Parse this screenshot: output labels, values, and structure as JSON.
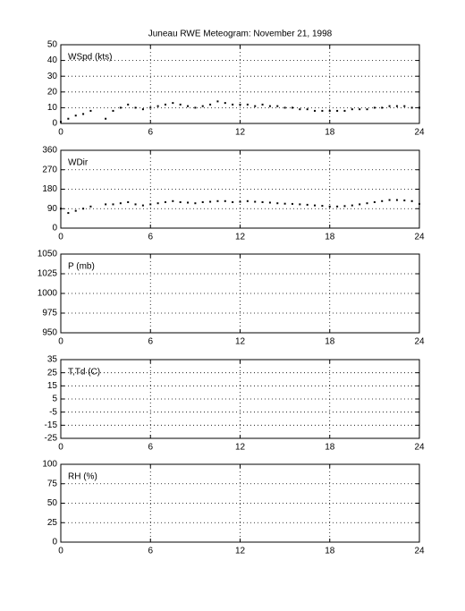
{
  "chart_data": [
    {
      "type": "scatter",
      "title": "Juneau RWE Meteogram:  November 21, 1998",
      "label": "WSpd (kts)",
      "color": "#000000",
      "grid": true,
      "xlim": [
        0,
        24
      ],
      "xticks": [
        0,
        6,
        12,
        18,
        24
      ],
      "ylim": [
        0,
        50
      ],
      "yticks": [
        0,
        10,
        20,
        30,
        40,
        50
      ],
      "x": [
        0,
        0.5,
        1,
        1.5,
        2,
        3,
        3.5,
        4,
        4.5,
        5,
        5.5,
        6,
        6.5,
        7,
        7.5,
        8,
        8.5,
        9,
        9.5,
        10,
        10.5,
        11,
        11.5,
        12,
        12.5,
        13,
        13.5,
        14,
        14.5,
        15,
        15.5,
        16,
        16.5,
        17,
        17.5,
        18,
        18.5,
        19,
        19.5,
        20,
        20.5,
        21,
        21.5,
        22,
        22.5,
        23,
        23.5,
        24
      ],
      "values": [
        1,
        3,
        5,
        6,
        8,
        3,
        8,
        10,
        12,
        10,
        9,
        10,
        11,
        12,
        13,
        12,
        11,
        10,
        11,
        12,
        14,
        13,
        12,
        12,
        12,
        11,
        12,
        11,
        11,
        10,
        10,
        9,
        9,
        8,
        8,
        8,
        8,
        8,
        9,
        9,
        9,
        10,
        10,
        11,
        11,
        11,
        10,
        10
      ]
    },
    {
      "type": "scatter",
      "label": "WDir",
      "color": "#000000",
      "grid": true,
      "xlim": [
        0,
        24
      ],
      "xticks": [
        0,
        6,
        12,
        18,
        24
      ],
      "ylim": [
        0,
        360
      ],
      "yticks": [
        0,
        90,
        180,
        270,
        360
      ],
      "x": [
        0,
        0.5,
        1,
        1.5,
        2,
        3,
        3.5,
        4,
        4.5,
        5,
        5.5,
        6,
        6.5,
        7,
        7.5,
        8,
        8.5,
        9,
        9.5,
        10,
        10.5,
        11,
        11.5,
        12,
        12.5,
        13,
        13.5,
        14,
        14.5,
        15,
        15.5,
        16,
        16.5,
        17,
        17.5,
        18,
        18.5,
        19,
        19.5,
        20,
        20.5,
        21,
        21.5,
        22,
        22.5,
        23,
        23.5,
        24
      ],
      "values": [
        90,
        70,
        80,
        90,
        100,
        110,
        110,
        115,
        120,
        110,
        105,
        110,
        115,
        120,
        125,
        120,
        118,
        115,
        120,
        122,
        125,
        125,
        120,
        122,
        125,
        122,
        120,
        118,
        115,
        113,
        112,
        110,
        108,
        105,
        103,
        100,
        100,
        102,
        105,
        110,
        115,
        120,
        125,
        130,
        130,
        128,
        125,
        112
      ]
    },
    {
      "type": "scatter",
      "label": "P (mb)",
      "grid": true,
      "xlim": [
        0,
        24
      ],
      "xticks": [
        0,
        6,
        12,
        18,
        24
      ],
      "ylim": [
        950,
        1050
      ],
      "yticks": [
        950,
        975,
        1000,
        1025,
        1050
      ]
    },
    {
      "type": "scatter",
      "label": "T,Td (C)",
      "grid": true,
      "xlim": [
        0,
        24
      ],
      "xticks": [
        0,
        6,
        12,
        18,
        24
      ],
      "ylim": [
        -25,
        35
      ],
      "yticks": [
        -25,
        -15,
        -5,
        5,
        15,
        25,
        35
      ]
    },
    {
      "type": "scatter",
      "label": "RH (%)",
      "grid": true,
      "xlim": [
        0,
        24
      ],
      "xticks": [
        0,
        6,
        12,
        18,
        24
      ],
      "ylim": [
        0,
        100
      ],
      "yticks": [
        0,
        25,
        50,
        75,
        100
      ]
    }
  ]
}
